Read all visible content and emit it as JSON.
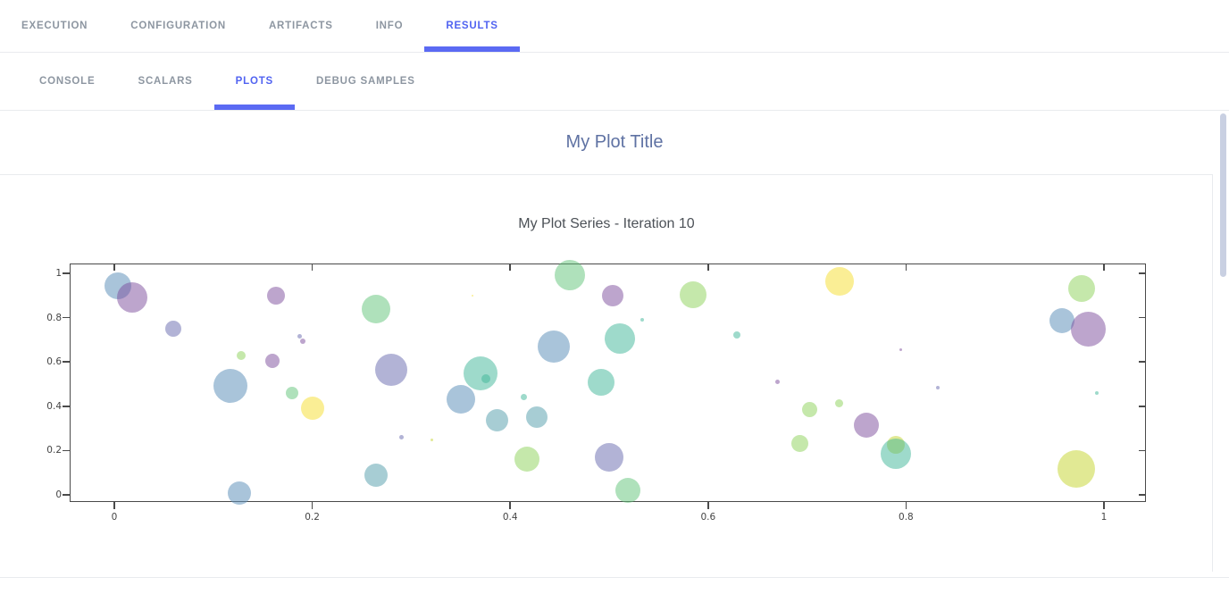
{
  "header": {
    "tabs": [
      {
        "label": "EXECUTION",
        "active": false
      },
      {
        "label": "CONFIGURATION",
        "active": false
      },
      {
        "label": "ARTIFACTS",
        "active": false
      },
      {
        "label": "INFO",
        "active": false
      },
      {
        "label": "RESULTS",
        "active": true
      }
    ]
  },
  "subheader": {
    "tabs": [
      {
        "label": "CONSOLE",
        "active": false
      },
      {
        "label": "SCALARS",
        "active": false
      },
      {
        "label": "PLOTS",
        "active": true
      },
      {
        "label": "DEBUG SAMPLES",
        "active": false
      }
    ]
  },
  "plot": {
    "title": "My Plot Title"
  },
  "chart_data": {
    "type": "scatter",
    "title": "My Plot Series - Iteration 10",
    "xlabel": "",
    "ylabel": "",
    "xlim": [
      -0.045,
      1.043
    ],
    "ylim": [
      -0.036,
      1.04
    ],
    "grid": false,
    "legend": "none",
    "x_ticks": [
      0,
      0.2,
      0.4,
      0.6,
      0.8,
      1
    ],
    "x_tick_labels": [
      "0",
      "0.2",
      "0.4",
      "0.6",
      "0.8",
      "1"
    ],
    "y_ticks": [
      0,
      0.2,
      0.4,
      0.6,
      0.8,
      1
    ],
    "y_tick_labels": [
      "0",
      "0.2",
      "0.4",
      "0.6",
      "0.8",
      "1"
    ],
    "colors": {
      "blue": "rgba(99,148,188,0.55)",
      "purple": "rgba(124,75,155,0.5)",
      "lavender": "rgba(101,103,173,0.5)",
      "green": "rgba(95,195,120,0.5)",
      "teal": "rgba(61,181,151,0.5)",
      "cadet": "rgba(79,155,169,0.5)",
      "yellow": "rgba(246,222,44,0.5)",
      "lightgreen": "rgba(139,209,87,0.5)",
      "yellowgreen": "rgba(201,215,61,0.55)"
    },
    "points": [
      {
        "x": 0.004,
        "y": 0.945,
        "r": 15,
        "c": "blue"
      },
      {
        "x": 0.018,
        "y": 0.89,
        "r": 17,
        "c": "purple"
      },
      {
        "x": 0.06,
        "y": 0.75,
        "r": 9,
        "c": "lavender"
      },
      {
        "x": 0.163,
        "y": 0.9,
        "r": 10,
        "c": "purple"
      },
      {
        "x": 0.16,
        "y": 0.605,
        "r": 8,
        "c": "purple"
      },
      {
        "x": 0.128,
        "y": 0.63,
        "r": 5,
        "c": "lightgreen"
      },
      {
        "x": 0.187,
        "y": 0.715,
        "r": 2.5,
        "c": "lavender"
      },
      {
        "x": 0.19,
        "y": 0.695,
        "r": 3,
        "c": "purple"
      },
      {
        "x": 0.18,
        "y": 0.46,
        "r": 7,
        "c": "green"
      },
      {
        "x": 0.2,
        "y": 0.39,
        "r": 13,
        "c": "yellow"
      },
      {
        "x": 0.117,
        "y": 0.49,
        "r": 19,
        "c": "blue"
      },
      {
        "x": 0.126,
        "y": 0.01,
        "r": 13,
        "c": "blue"
      },
      {
        "x": 0.264,
        "y": 0.09,
        "r": 13,
        "c": "cadet"
      },
      {
        "x": 0.29,
        "y": 0.26,
        "r": 2.5,
        "c": "lavender"
      },
      {
        "x": 0.28,
        "y": 0.565,
        "r": 18,
        "c": "lavender"
      },
      {
        "x": 0.264,
        "y": 0.84,
        "r": 16,
        "c": "green"
      },
      {
        "x": 0.35,
        "y": 0.43,
        "r": 16,
        "c": "blue"
      },
      {
        "x": 0.387,
        "y": 0.335,
        "r": 12.5,
        "c": "cadet"
      },
      {
        "x": 0.414,
        "y": 0.44,
        "r": 3.5,
        "c": "teal"
      },
      {
        "x": 0.427,
        "y": 0.35,
        "r": 12,
        "c": "cadet"
      },
      {
        "x": 0.37,
        "y": 0.55,
        "r": 19,
        "c": "teal"
      },
      {
        "x": 0.375,
        "y": 0.525,
        "r": 5,
        "c": "teal"
      },
      {
        "x": 0.321,
        "y": 0.25,
        "r": 1.5,
        "c": "yellowgreen"
      },
      {
        "x": 0.417,
        "y": 0.16,
        "r": 14,
        "c": "lightgreen"
      },
      {
        "x": 0.5,
        "y": 0.17,
        "r": 16,
        "c": "lavender"
      },
      {
        "x": 0.519,
        "y": 0.02,
        "r": 14,
        "c": "green"
      },
      {
        "x": 0.46,
        "y": 0.99,
        "r": 17,
        "c": "green"
      },
      {
        "x": 0.504,
        "y": 0.9,
        "r": 12,
        "c": "purple"
      },
      {
        "x": 0.585,
        "y": 0.905,
        "r": 15,
        "c": "lightgreen"
      },
      {
        "x": 0.533,
        "y": 0.79,
        "r": 2,
        "c": "teal"
      },
      {
        "x": 0.511,
        "y": 0.705,
        "r": 17,
        "c": "teal"
      },
      {
        "x": 0.629,
        "y": 0.72,
        "r": 4,
        "c": "teal"
      },
      {
        "x": 0.444,
        "y": 0.67,
        "r": 18,
        "c": "blue"
      },
      {
        "x": 0.492,
        "y": 0.51,
        "r": 15,
        "c": "teal"
      },
      {
        "x": 0.67,
        "y": 0.51,
        "r": 2.7,
        "c": "purple"
      },
      {
        "x": 0.362,
        "y": 0.9,
        "r": 1.3,
        "c": "yellow"
      },
      {
        "x": 0.733,
        "y": 0.965,
        "r": 16,
        "c": "yellow"
      },
      {
        "x": 0.977,
        "y": 0.93,
        "r": 15,
        "c": "lightgreen"
      },
      {
        "x": 0.958,
        "y": 0.785,
        "r": 14,
        "c": "blue"
      },
      {
        "x": 0.984,
        "y": 0.75,
        "r": 19.5,
        "c": "purple"
      },
      {
        "x": 0.795,
        "y": 0.655,
        "r": 1.5,
        "c": "purple"
      },
      {
        "x": 0.832,
        "y": 0.485,
        "r": 2,
        "c": "lavender"
      },
      {
        "x": 0.703,
        "y": 0.385,
        "r": 8.5,
        "c": "lightgreen"
      },
      {
        "x": 0.732,
        "y": 0.415,
        "r": 4.5,
        "c": "lightgreen"
      },
      {
        "x": 0.76,
        "y": 0.315,
        "r": 14,
        "c": "purple"
      },
      {
        "x": 0.693,
        "y": 0.23,
        "r": 9.5,
        "c": "lightgreen"
      },
      {
        "x": 0.79,
        "y": 0.225,
        "r": 10,
        "c": "yellowgreen"
      },
      {
        "x": 0.79,
        "y": 0.185,
        "r": 17,
        "c": "teal"
      },
      {
        "x": 0.993,
        "y": 0.46,
        "r": 2,
        "c": "teal"
      },
      {
        "x": 0.972,
        "y": 0.115,
        "r": 21,
        "c": "yellowgreen"
      }
    ]
  }
}
